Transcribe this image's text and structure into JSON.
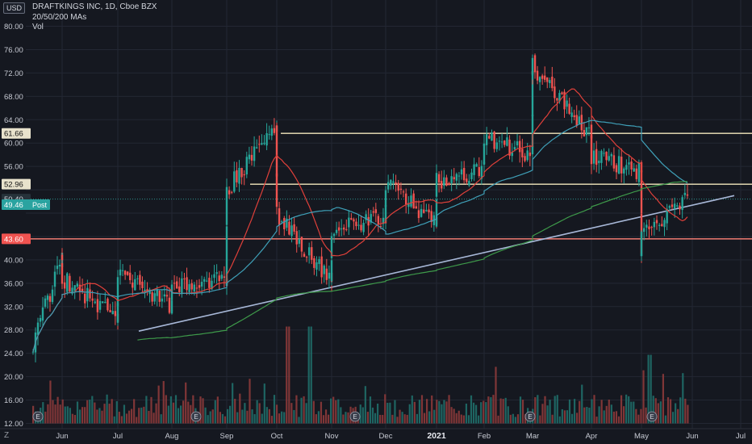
{
  "header": {
    "currency": "USD",
    "symbol_line": "DRAFTKINGS INC, 1D, Cboe BZX",
    "ma_line": "20/50/200 MAs",
    "vol_line": "Vol"
  },
  "colors": {
    "background": "#151820",
    "up": "#26a69a",
    "down": "#ef5350",
    "ma20": "#e0403a",
    "ma50": "#3fa0b8",
    "ma200": "#3e9a4a",
    "trendline": "#a8b8d8",
    "resistance": "#f3e7bd",
    "support": "#f07b72",
    "post_badge": "#2aa3a0",
    "support_badge": "#f05350",
    "axis_text": "#c7cad3"
  },
  "chart_data": {
    "type": "candlestick",
    "title": "DRAFTKINGS INC, 1D, Cboe BZX",
    "ylim": [
      12,
      82
    ],
    "y_ticks": [
      12,
      16,
      20,
      24,
      28,
      32,
      36,
      40,
      44,
      48,
      52,
      56,
      60,
      64,
      68,
      72,
      76,
      80
    ],
    "x_ticks": [
      "Jun",
      "Jul",
      "Aug",
      "Sep",
      "Oct",
      "Nov",
      "Dec",
      "2021",
      "Feb",
      "Mar",
      "Apr",
      "May",
      "Jun",
      "Jul"
    ],
    "price_labels": [
      {
        "text": "61.66",
        "value": 61.66,
        "style": "resistance"
      },
      {
        "text": "52.96",
        "value": 52.96,
        "style": "resistance"
      },
      {
        "text": "50.40",
        "value": 50.4,
        "style": "last"
      },
      {
        "text": "49.46",
        "value": 49.46,
        "style": "post",
        "tag": "Post"
      },
      {
        "text": "43.60",
        "value": 43.6,
        "style": "support"
      }
    ],
    "horizontal_levels": [
      {
        "value": 61.66,
        "from_month": "Oct",
        "kind": "resistance"
      },
      {
        "value": 52.96,
        "from_month": "Sep",
        "kind": "resistance"
      },
      {
        "value": 43.6,
        "from_month": "Jun",
        "kind": "support"
      }
    ],
    "trendline": {
      "from": [
        "Jul",
        27.8
      ],
      "to": [
        "Jun",
        51.0
      ]
    },
    "earnings_markers": [
      "May",
      "Aug",
      "Nov",
      "Feb",
      "May"
    ],
    "series": [
      {
        "name": "MA 20",
        "kind": "ma20"
      },
      {
        "name": "MA 50",
        "kind": "ma50"
      },
      {
        "name": "MA 200",
        "kind": "ma200"
      },
      {
        "name": "Vol",
        "kind": "volume"
      }
    ],
    "price_path": [
      [
        "May",
        24.5
      ],
      [
        "Jun",
        40.5
      ],
      [
        "Jun",
        37.0
      ],
      [
        "Jul",
        30.0
      ],
      [
        "Jul",
        37.5
      ],
      [
        "Aug",
        32.0
      ],
      [
        "Aug",
        35.0
      ],
      [
        "Sep",
        37.0
      ],
      [
        "Sep",
        52.0
      ],
      [
        "Oct",
        63.0
      ],
      [
        "Oct",
        48.0
      ],
      [
        "Nov",
        36.0
      ],
      [
        "Nov",
        45.5
      ],
      [
        "Dec",
        47.0
      ],
      [
        "Dec",
        53.5
      ],
      [
        "2021",
        46.0
      ],
      [
        "2021",
        53.5
      ],
      [
        "Feb",
        55.5
      ],
      [
        "Feb",
        61.0
      ],
      [
        "Mar",
        58.0
      ],
      [
        "Mar",
        71.0
      ],
      [
        "Mar",
        73.0
      ],
      [
        "Apr",
        61.0
      ],
      [
        "Apr",
        58.0
      ],
      [
        "May",
        55.0
      ],
      [
        "May",
        41.0
      ],
      [
        "May",
        44.0
      ],
      [
        "Jun",
        50.4
      ]
    ],
    "volume": {
      "ylim": [
        0,
        100
      ],
      "base_level": 12,
      "peak_level": 29
    },
    "grid": true,
    "legend": "top-left"
  }
}
